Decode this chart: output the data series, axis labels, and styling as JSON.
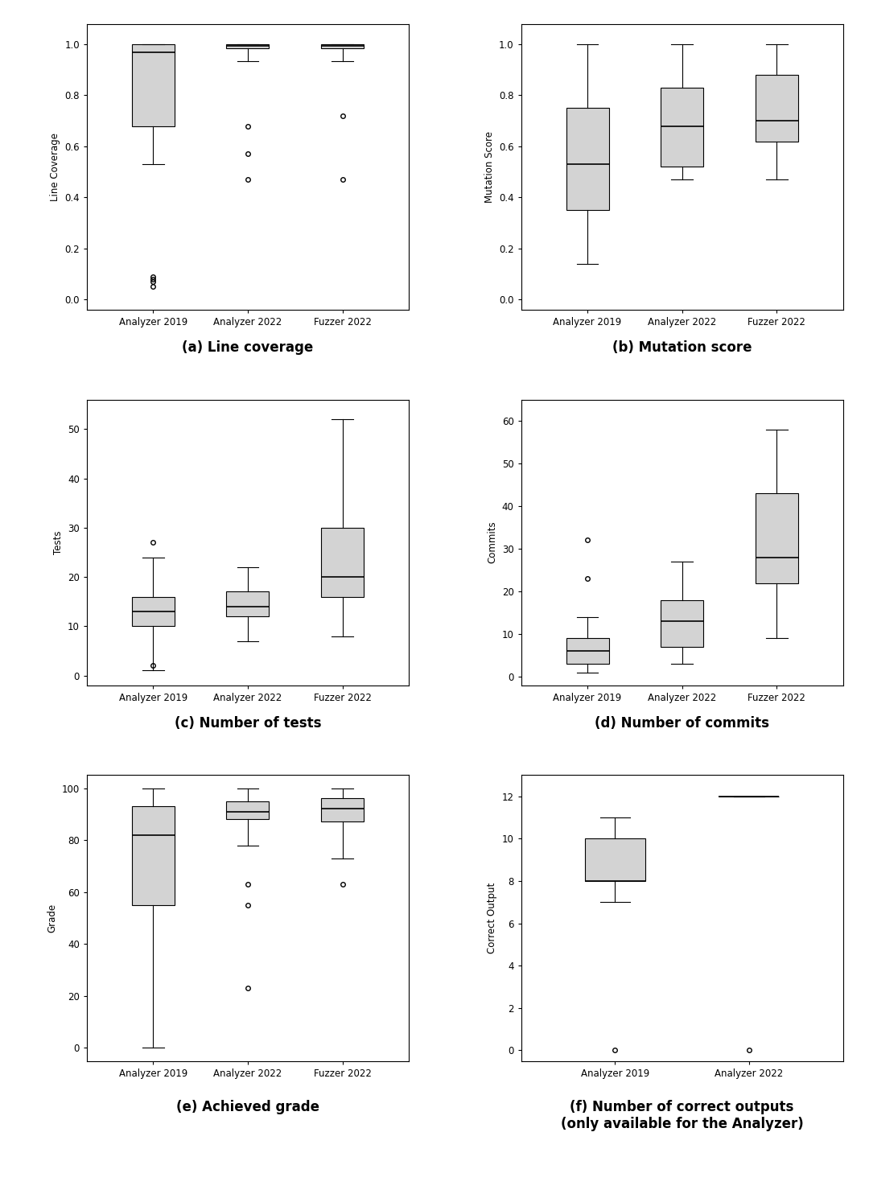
{
  "background_color": "#ffffff",
  "box_facecolor": "#d3d3d3",
  "box_edgecolor": "#000000",
  "whisker_color": "#000000",
  "median_color": "#000000",
  "flier_color": "#000000",
  "subplots": [
    {
      "label": "(a) Line coverage",
      "ylabel": "Line Coverage",
      "xlabels": [
        "Analyzer 2019",
        "Analyzer 2022",
        "Fuzzer 2022"
      ],
      "ylim": [
        -0.04,
        1.08
      ],
      "yticks": [
        0.0,
        0.2,
        0.4,
        0.6,
        0.8,
        1.0
      ],
      "boxes": [
        {
          "q1": 0.68,
          "median": 0.97,
          "q3": 1.0,
          "whislo": 0.53,
          "whishi": 1.0,
          "fliers": [
            0.05,
            0.07,
            0.08,
            0.09
          ]
        },
        {
          "q1": 0.985,
          "median": 0.995,
          "q3": 1.0,
          "whislo": 0.935,
          "whishi": 1.0,
          "fliers": [
            0.68,
            0.57,
            0.47
          ]
        },
        {
          "q1": 0.985,
          "median": 0.995,
          "q3": 1.0,
          "whislo": 0.935,
          "whishi": 1.0,
          "fliers": [
            0.72,
            0.47
          ]
        }
      ]
    },
    {
      "label": "(b) Mutation score",
      "ylabel": "Mutation Score",
      "xlabels": [
        "Analyzer 2019",
        "Analyzer 2022",
        "Fuzzer 2022"
      ],
      "ylim": [
        -0.04,
        1.08
      ],
      "yticks": [
        0.0,
        0.2,
        0.4,
        0.6,
        0.8,
        1.0
      ],
      "boxes": [
        {
          "q1": 0.35,
          "median": 0.53,
          "q3": 0.75,
          "whislo": 0.14,
          "whishi": 1.0,
          "fliers": []
        },
        {
          "q1": 0.52,
          "median": 0.68,
          "q3": 0.83,
          "whislo": 0.47,
          "whishi": 1.0,
          "fliers": []
        },
        {
          "q1": 0.62,
          "median": 0.7,
          "q3": 0.88,
          "whislo": 0.47,
          "whishi": 1.0,
          "fliers": []
        }
      ]
    },
    {
      "label": "(c) Number of tests",
      "ylabel": "Tests",
      "xlabels": [
        "Analyzer 2019",
        "Analyzer 2022",
        "Fuzzer 2022"
      ],
      "ylim": [
        -2,
        56
      ],
      "yticks": [
        0,
        10,
        20,
        30,
        40,
        50
      ],
      "boxes": [
        {
          "q1": 10,
          "median": 13,
          "q3": 16,
          "whislo": 1,
          "whishi": 24,
          "fliers": [
            27,
            2
          ]
        },
        {
          "q1": 12,
          "median": 14,
          "q3": 17,
          "whislo": 7,
          "whishi": 22,
          "fliers": []
        },
        {
          "q1": 16,
          "median": 20,
          "q3": 30,
          "whislo": 8,
          "whishi": 52,
          "fliers": []
        }
      ]
    },
    {
      "label": "(d) Number of commits",
      "ylabel": "Commits",
      "xlabels": [
        "Analyzer 2019",
        "Analyzer 2022",
        "Fuzzer 2022"
      ],
      "ylim": [
        -2,
        65
      ],
      "yticks": [
        0,
        10,
        20,
        30,
        40,
        50,
        60
      ],
      "boxes": [
        {
          "q1": 3,
          "median": 6,
          "q3": 9,
          "whislo": 1,
          "whishi": 14,
          "fliers": [
            32,
            23
          ]
        },
        {
          "q1": 7,
          "median": 13,
          "q3": 18,
          "whislo": 3,
          "whishi": 27,
          "fliers": []
        },
        {
          "q1": 22,
          "median": 28,
          "q3": 43,
          "whislo": 9,
          "whishi": 58,
          "fliers": []
        }
      ]
    },
    {
      "label": "(e) Achieved grade",
      "ylabel": "Grade",
      "xlabels": [
        "Analyzer 2019",
        "Analyzer 2022",
        "Fuzzer 2022"
      ],
      "ylim": [
        -5,
        105
      ],
      "yticks": [
        0,
        20,
        40,
        60,
        80,
        100
      ],
      "boxes": [
        {
          "q1": 55,
          "median": 82,
          "q3": 93,
          "whislo": 0,
          "whishi": 100,
          "fliers": []
        },
        {
          "q1": 88,
          "median": 91,
          "q3": 95,
          "whislo": 78,
          "whishi": 100,
          "fliers": [
            63,
            55,
            23
          ]
        },
        {
          "q1": 87,
          "median": 92,
          "q3": 96,
          "whislo": 73,
          "whishi": 100,
          "fliers": [
            63
          ]
        }
      ]
    },
    {
      "label": "(f) Number of correct outputs\n(only available for the Analyzer)",
      "ylabel": "Correct Output",
      "xlabels": [
        "Analyzer 2019",
        "Analyzer 2022"
      ],
      "ylim": [
        -0.5,
        13
      ],
      "yticks": [
        0,
        2,
        4,
        6,
        8,
        10,
        12
      ],
      "boxes": [
        {
          "q1": 8,
          "median": 8,
          "q3": 10,
          "whislo": 7,
          "whishi": 11,
          "fliers": [
            0
          ]
        },
        {
          "q1": 12,
          "median": 12,
          "q3": 12,
          "whislo": 12,
          "whishi": 12,
          "fliers": [
            0
          ]
        }
      ]
    }
  ]
}
